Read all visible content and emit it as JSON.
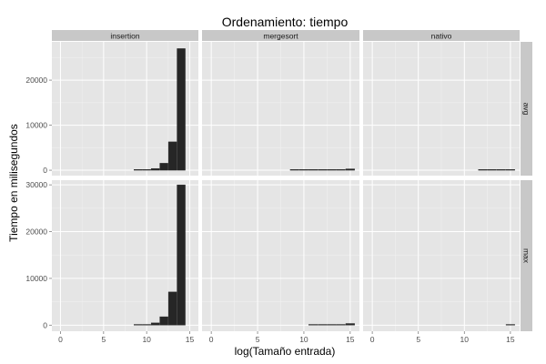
{
  "chart_data": {
    "type": "bar",
    "title": "Ordenamiento: tiempo",
    "xlabel": "log(Tamaño entrada)",
    "ylabel": "Tiempo en milisegundos",
    "facet_columns": [
      "insertion",
      "mergesort",
      "nativo"
    ],
    "facet_rows": [
      {
        "name": "avg",
        "ylim": [
          -1200,
          28500
        ],
        "yticks": [
          0,
          10000,
          20000
        ]
      },
      {
        "name": "max",
        "ylim": [
          -1300,
          31000
        ],
        "yticks": [
          0,
          10000,
          20000,
          30000
        ]
      }
    ],
    "xlim": [
      -1,
      16
    ],
    "xticks": [
      0,
      5,
      10,
      15
    ],
    "bar_width": 0.95,
    "grid": true,
    "legend": "none",
    "colors": {
      "panel_bg": "#e5e5e5",
      "grid_major": "#ffffff",
      "grid_minor": "#f2f2f2",
      "strip_bg": "#c8c8c8",
      "bar": "#262626"
    },
    "panels": [
      {
        "row": "avg",
        "col": "insertion",
        "x": [
          9,
          10,
          11,
          12,
          13,
          14
        ],
        "y": [
          20,
          90,
          380,
          1550,
          6300,
          27000
        ]
      },
      {
        "row": "avg",
        "col": "mergesort",
        "x": [
          9,
          10,
          11,
          12,
          13,
          14,
          15
        ],
        "y": [
          2,
          5,
          10,
          25,
          50,
          120,
          300
        ]
      },
      {
        "row": "avg",
        "col": "nativo",
        "x": [
          12,
          13,
          14,
          15
        ],
        "y": [
          1,
          2,
          4,
          9
        ]
      },
      {
        "row": "max",
        "col": "insertion",
        "x": [
          9,
          10,
          11,
          12,
          13,
          14
        ],
        "y": [
          40,
          150,
          480,
          1800,
          7100,
          30000
        ]
      },
      {
        "row": "max",
        "col": "mergesort",
        "x": [
          11,
          12,
          13,
          14,
          15
        ],
        "y": [
          15,
          30,
          60,
          130,
          350
        ]
      },
      {
        "row": "max",
        "col": "nativo",
        "x": [
          15
        ],
        "y": [
          30
        ]
      }
    ]
  }
}
